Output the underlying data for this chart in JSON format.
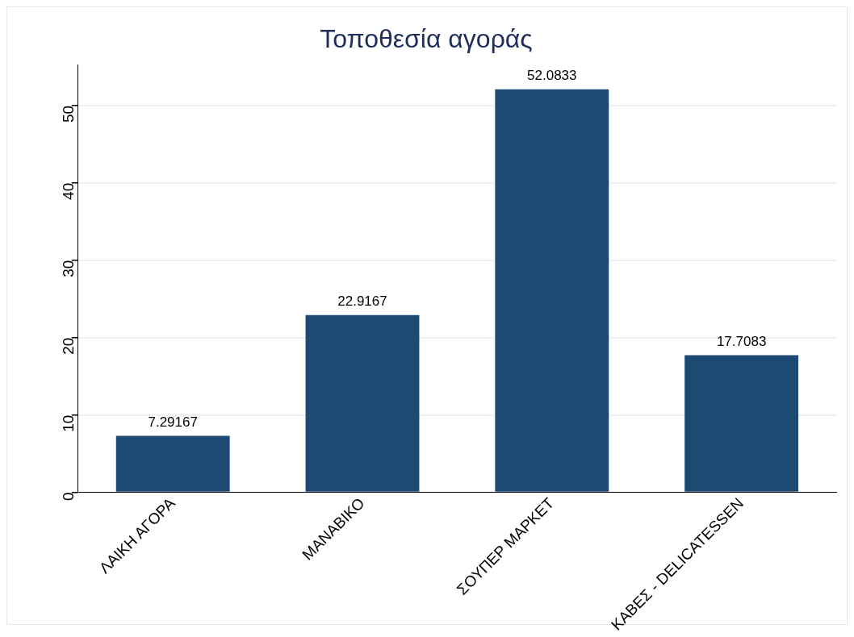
{
  "chart_data": {
    "type": "bar",
    "title": "Τοποθεσία αγοράς",
    "categories": [
      "ΛΑΙΚΗ ΑΓΟΡΑ",
      "ΜΑΝΑΒΙΚΟ",
      "ΣΟΥΠΕΡ ΜΑΡΚΕΤ",
      "ΚΑΒΕΣ - DELICATESSEN"
    ],
    "values": [
      7.29167,
      22.9167,
      52.0833,
      17.7083
    ],
    "color": "#1c4a72",
    "ylim": [
      0,
      55.3
    ],
    "yticks": [
      0,
      10,
      20,
      30,
      40,
      50
    ],
    "grid": "y",
    "data_labels": true
  }
}
